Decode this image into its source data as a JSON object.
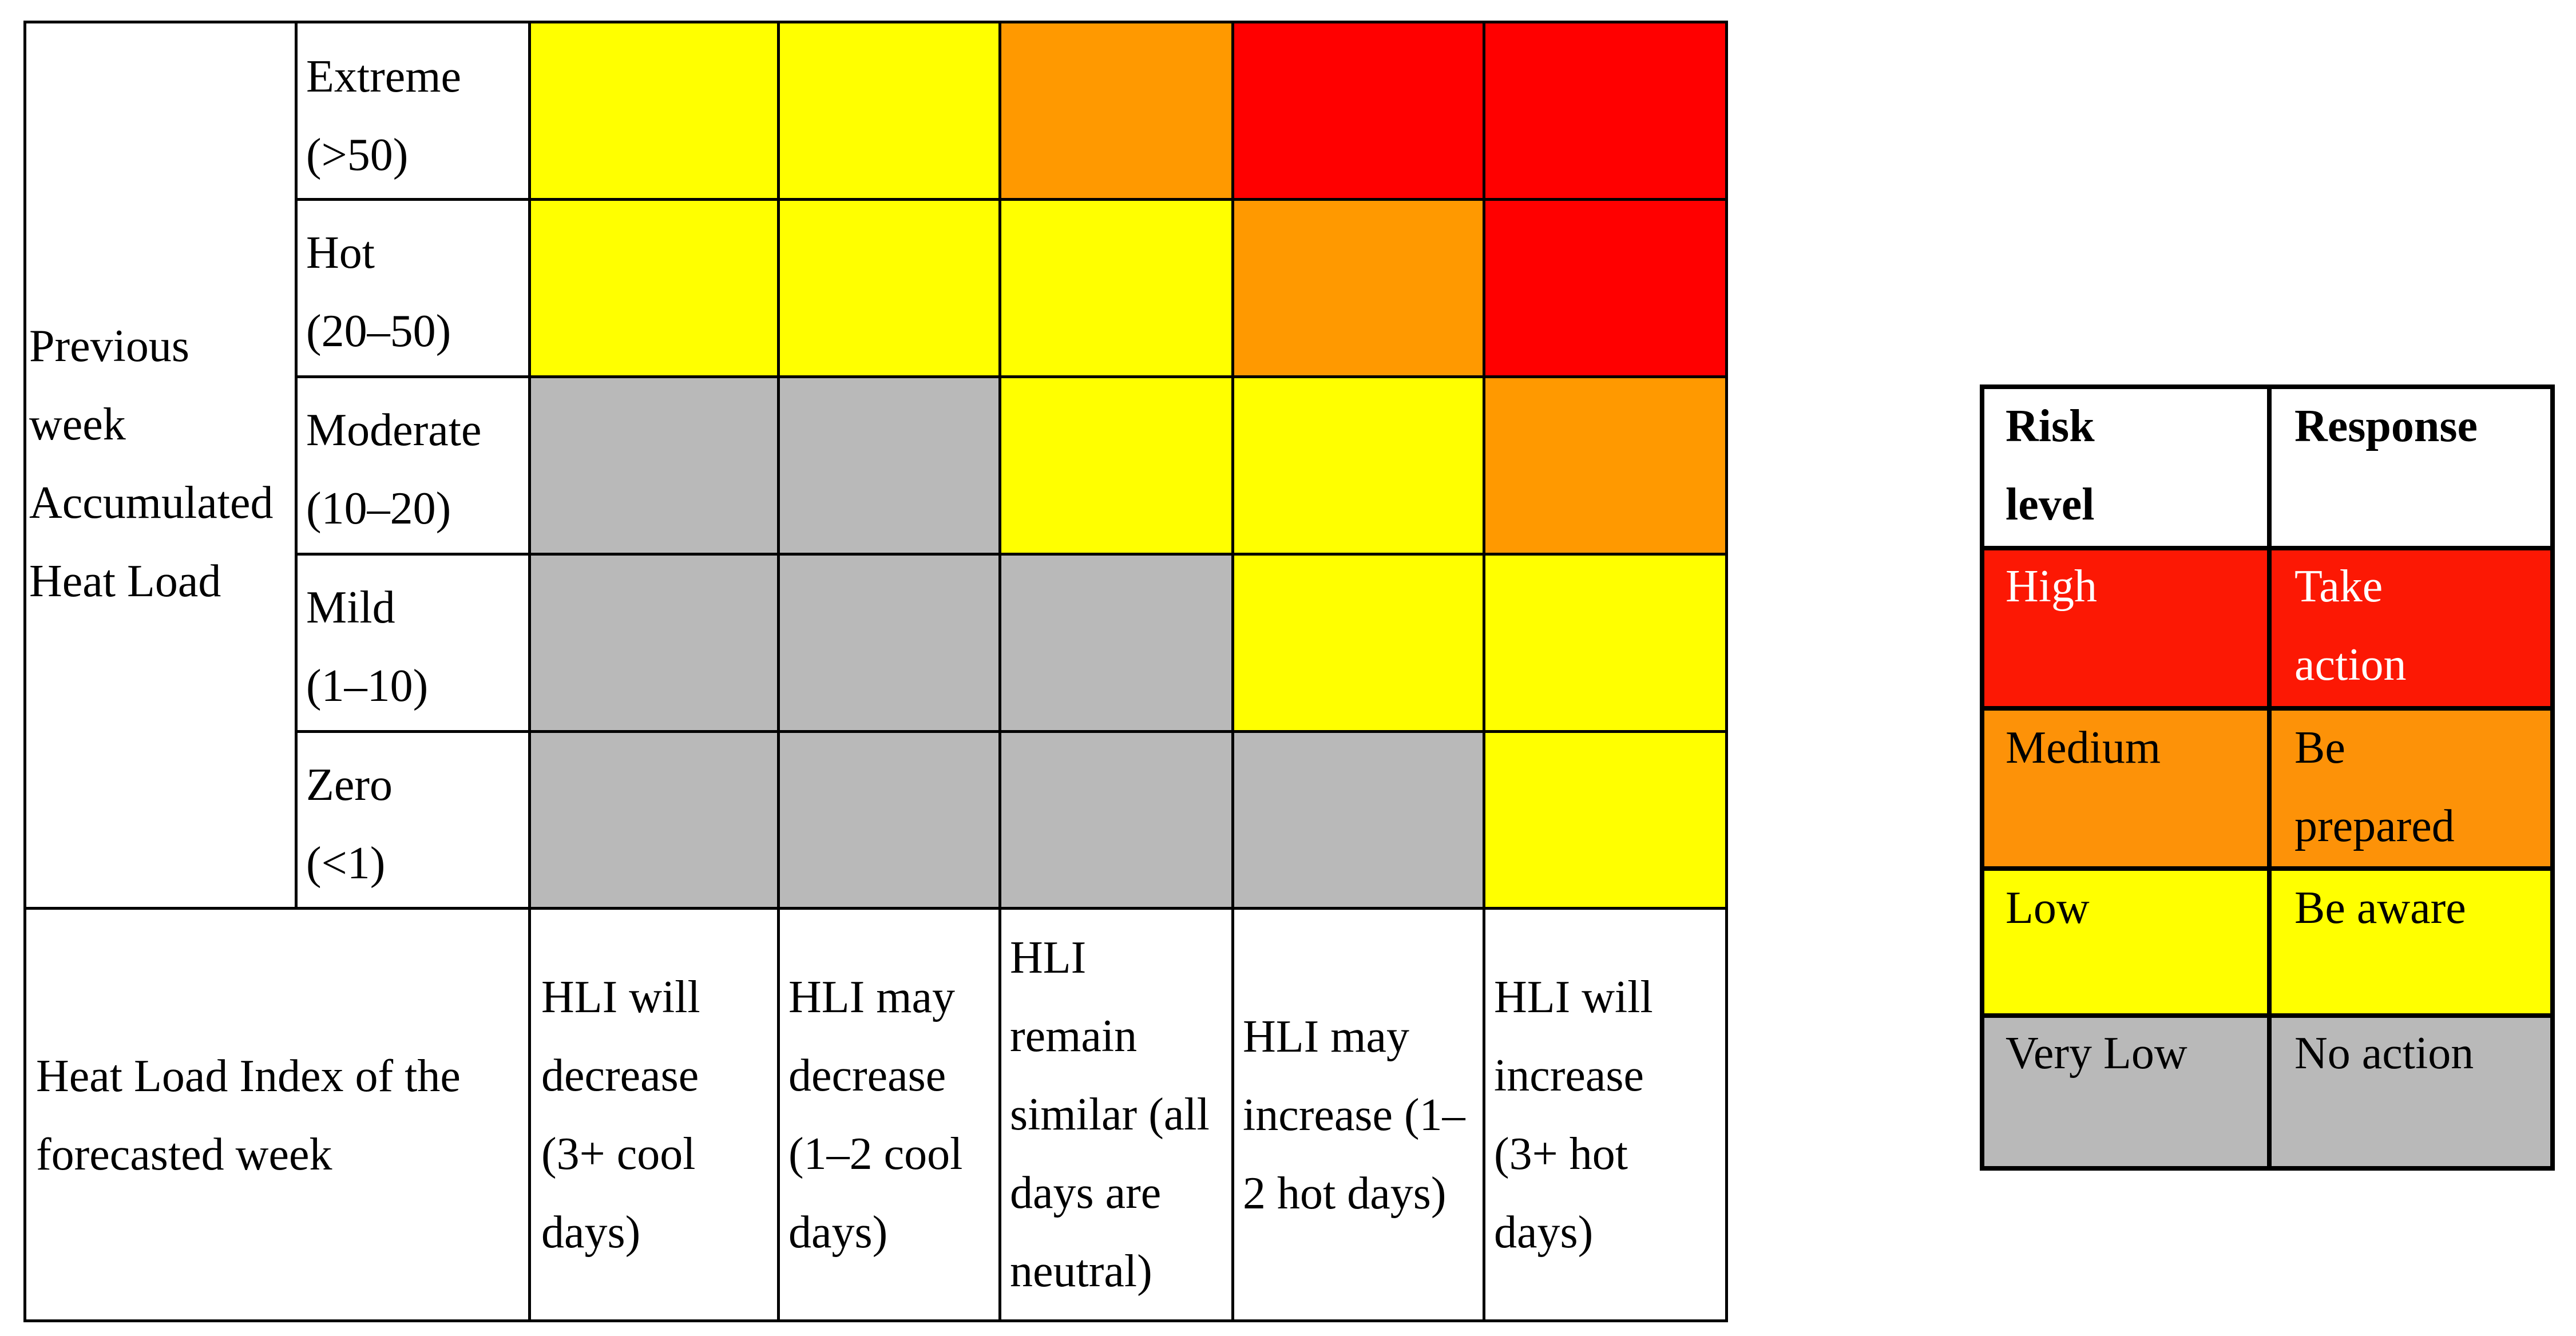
{
  "matrix": {
    "y_axis_title": [
      "Previous",
      "week",
      "Accumulated",
      "Heat Load"
    ],
    "rows": [
      {
        "label": [
          "Extreme",
          "(>50)"
        ],
        "cells": [
          "Low",
          "Low",
          "Medium",
          "High",
          "High"
        ]
      },
      {
        "label": [
          "Hot",
          "(20–50)"
        ],
        "cells": [
          "Low",
          "Low",
          "Low",
          "Medium",
          "High"
        ]
      },
      {
        "label": [
          "Moderate",
          "(10–20)"
        ],
        "cells": [
          "Very Low",
          "Very Low",
          "Low",
          "Low",
          "Medium"
        ]
      },
      {
        "label": [
          "Mild",
          "(1–10)"
        ],
        "cells": [
          "Very Low",
          "Very Low",
          "Very Low",
          "Low",
          "Low"
        ]
      },
      {
        "label": [
          "Zero",
          "(<1)"
        ],
        "cells": [
          "Very Low",
          "Very Low",
          "Very Low",
          "Very Low",
          "Low"
        ]
      }
    ],
    "x_axis_title": [
      "Heat Load Index of the",
      "forecasted week"
    ],
    "columns": [
      [
        "HLI will",
        "decrease",
        "(3+ cool",
        "days)"
      ],
      [
        "HLI may",
        "decrease",
        "(1–2 cool",
        "days)"
      ],
      [
        "HLI",
        "remain",
        "similar (all",
        "days are",
        "neutral)"
      ],
      [
        "HLI may",
        "increase (1–",
        "2 hot days)"
      ],
      [
        "HLI will",
        "increase",
        "(3+ hot",
        "days)"
      ]
    ]
  },
  "legend": {
    "header": {
      "risk": [
        "Risk",
        "level"
      ],
      "response": [
        "Response"
      ]
    },
    "items": [
      {
        "level": "High",
        "response": [
          "Take",
          "action"
        ],
        "color": "#fc1804"
      },
      {
        "level": "Medium",
        "response": [
          "Be",
          "prepared"
        ],
        "color": "#fd9208"
      },
      {
        "level": "Low",
        "response": [
          "Be aware"
        ],
        "color": "#ffff00"
      },
      {
        "level": "Very Low",
        "response": [
          "No action"
        ],
        "color": "#b9b9b9"
      }
    ]
  }
}
